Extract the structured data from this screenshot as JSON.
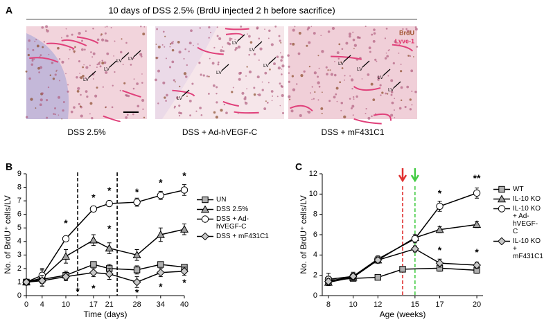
{
  "panel_labels": [
    "A",
    "B",
    "C"
  ],
  "figure_title": "10 days of DSS 2.5% (BrdU injected 2 h before sacrifice)",
  "images": [
    {
      "caption": "DSS 2.5%",
      "labels": [
        "LV",
        "LV",
        "LV",
        "LV"
      ]
    },
    {
      "caption": "DSS + Ad-hVEGF-C",
      "labels": [
        "LV",
        "LV",
        "LV",
        "LV",
        "LV"
      ]
    },
    {
      "caption": "DSS + mF431C1",
      "labels": [
        "LV",
        "LV",
        "LV",
        "LV"
      ],
      "stain_labels": [
        {
          "text": "BrdU",
          "color": "#a0522d"
        },
        {
          "text": "Lyve-1",
          "color": "#e0306a"
        }
      ]
    }
  ],
  "chart_data": [
    {
      "type": "line",
      "x_label": "Time (days)",
      "y_label": "No. of BrdU⁺ cells/LV",
      "x": [
        0,
        4,
        10,
        17,
        21,
        28,
        34,
        40
      ],
      "xlim": [
        0,
        40
      ],
      "xticks": [
        0,
        4,
        10,
        17,
        21,
        28,
        34,
        40
      ],
      "ylim": [
        0,
        9
      ],
      "yticks": [
        0,
        1,
        2,
        3,
        4,
        5,
        6,
        7,
        8,
        9
      ],
      "series": [
        {
          "name": "UN",
          "marker": "square",
          "color": "#b0b0b0",
          "values": [
            1,
            1.2,
            1.5,
            2.3,
            2.0,
            1.9,
            2.3,
            2.1
          ],
          "errors": [
            0.1,
            0.3,
            0.3,
            0.2,
            0.3,
            0.3,
            0.2,
            0.2
          ]
        },
        {
          "name": "DSS 2.5%",
          "marker": "triangle",
          "color": "#a0a0a0",
          "values": [
            1,
            1.3,
            2.9,
            4.1,
            3.5,
            3.0,
            4.5,
            4.9
          ],
          "errors": [
            0.1,
            0.6,
            0.5,
            0.4,
            0.4,
            0.4,
            0.5,
            0.4
          ]
        },
        {
          "name": "DSS + Ad-hVEGF-C",
          "marker": "circle",
          "color": "#ffffff",
          "values": [
            1,
            1.5,
            4.2,
            6.4,
            6.8,
            6.9,
            7.4,
            7.8
          ],
          "errors": [
            0.1,
            0.5,
            0.1,
            0.2,
            0.2,
            0.3,
            0.3,
            0.4
          ]
        },
        {
          "name": "DSS + mF431C1",
          "marker": "diamond",
          "color": "#c8c8c8",
          "values": [
            1,
            1.1,
            1.4,
            1.7,
            1.6,
            1.0,
            1.7,
            1.8
          ],
          "errors": [
            0.1,
            0.4,
            0.3,
            0.3,
            0.4,
            0.4,
            0.3,
            0.3
          ]
        }
      ],
      "vlines": [
        {
          "x": 13,
          "color": "#000000"
        },
        {
          "x": 23,
          "color": "#000000"
        }
      ],
      "annotations": [
        {
          "text": "*",
          "x": 10,
          "y": 5.3
        },
        {
          "text": "*",
          "x": 17,
          "y": 7.2
        },
        {
          "text": "*",
          "x": 21,
          "y": 7.7
        },
        {
          "text": "*",
          "x": 28,
          "y": 7.6
        },
        {
          "text": "*",
          "x": 34,
          "y": 8.3
        },
        {
          "text": "*",
          "x": 40,
          "y": 8.8
        },
        {
          "text": "*",
          "x": 13,
          "y": 0.3
        },
        {
          "text": "*",
          "x": 17,
          "y": 0.5
        },
        {
          "text": "*",
          "x": 28,
          "y": 0.2
        },
        {
          "text": "*",
          "x": 34,
          "y": 0.6
        },
        {
          "text": "*",
          "x": 40,
          "y": 0.9
        },
        {
          "text": "*",
          "x": 21,
          "y": 4.9
        }
      ]
    },
    {
      "type": "line",
      "x_label": "Age (weeks)",
      "y_label": "No. of BrdU⁺ cells/LV",
      "xlim": [
        7.5,
        20.5
      ],
      "xticks": [
        8,
        10,
        12,
        15,
        17,
        20
      ],
      "ylim": [
        0,
        12
      ],
      "yticks": [
        0,
        2,
        4,
        6,
        8,
        10,
        12
      ],
      "series": [
        {
          "name": "WT",
          "marker": "square",
          "color": "#b0b0b0",
          "x": [
            8,
            10,
            12,
            14,
            17,
            20
          ],
          "values": [
            1.5,
            1.7,
            1.8,
            2.6,
            2.7,
            2.5
          ],
          "errors": [
            0.4,
            0.2,
            0.2,
            0.2,
            0.3,
            0.3
          ]
        },
        {
          "name": "IL-10 KO",
          "marker": "triangle",
          "color": "#a0a0a0",
          "x": [
            8,
            10,
            12,
            15,
            17,
            20
          ],
          "values": [
            1.3,
            1.8,
            3.5,
            5.7,
            6.5,
            7.0
          ],
          "errors": [
            0.3,
            0.3,
            0.3,
            0.3,
            0.3,
            0.3
          ]
        },
        {
          "name": "IL-10 KO + Ad-hVEGF-C",
          "marker": "circle",
          "color": "#ffffff",
          "x": [
            8,
            10,
            12,
            15,
            17,
            20
          ],
          "values": [
            1.6,
            1.9,
            3.6,
            5.6,
            8.8,
            10.1
          ],
          "errors": [
            0.6,
            0.4,
            0.3,
            0.4,
            0.5,
            0.5
          ]
        },
        {
          "name": "IL-10 KO + mF431C1",
          "marker": "diamond",
          "color": "#c8c8c8",
          "x": [
            8,
            10,
            12,
            15,
            17,
            20
          ],
          "values": [
            1.4,
            1.9,
            3.5,
            4.6,
            3.2,
            3.0
          ],
          "errors": [
            0.3,
            0.3,
            0.3,
            0.3,
            0.4,
            0.3
          ]
        }
      ],
      "vlines": [
        {
          "x": 14,
          "color": "#e03030",
          "arrow": true
        },
        {
          "x": 15,
          "color": "#44cc44",
          "arrow": true
        }
      ],
      "annotations": [
        {
          "text": "*",
          "x": 17,
          "y": 10.0
        },
        {
          "text": "**",
          "x": 20,
          "y": 11.5
        },
        {
          "text": "*",
          "x": 17,
          "y": 4.4
        },
        {
          "text": "*",
          "x": 20,
          "y": 4.2
        }
      ]
    }
  ]
}
